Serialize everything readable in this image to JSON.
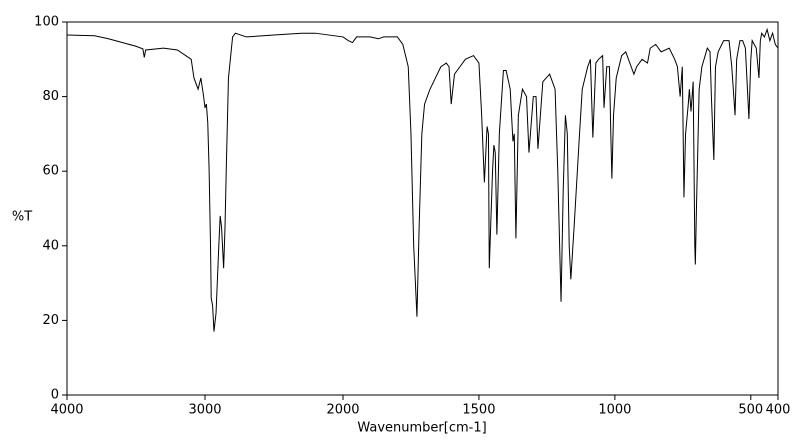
{
  "chart_data": {
    "type": "line",
    "xlabel": "Wavenumber[cm-1]",
    "ylabel": "%T",
    "xlim": [
      4000,
      400
    ],
    "xscale": {
      "type": "piecewise",
      "break": 2000
    },
    "xticks": [
      4000,
      3000,
      2000,
      1500,
      1000,
      500,
      400
    ],
    "ylim": [
      0,
      100
    ],
    "yticks": [
      0,
      20,
      40,
      60,
      80,
      100
    ],
    "color": "#000000",
    "x": [
      4000,
      3800,
      3700,
      3600,
      3500,
      3450,
      3440,
      3430,
      3300,
      3200,
      3100,
      3080,
      3050,
      3030,
      3010,
      3000,
      2990,
      2980,
      2970,
      2960,
      2955,
      2945,
      2935,
      2920,
      2900,
      2890,
      2880,
      2865,
      2855,
      2845,
      2830,
      2800,
      2780,
      2700,
      2500,
      2300,
      2200,
      2100,
      2000,
      1980,
      1965,
      1950,
      1900,
      1870,
      1850,
      1800,
      1780,
      1760,
      1750,
      1740,
      1728,
      1720,
      1710,
      1700,
      1680,
      1660,
      1640,
      1620,
      1610,
      1602,
      1590,
      1570,
      1550,
      1520,
      1500,
      1490,
      1480,
      1470,
      1465,
      1462,
      1450,
      1445,
      1440,
      1434,
      1425,
      1410,
      1400,
      1385,
      1375,
      1370,
      1364,
      1355,
      1340,
      1325,
      1316,
      1300,
      1290,
      1283,
      1265,
      1240,
      1220,
      1210,
      1198,
      1190,
      1182,
      1175,
      1168,
      1162,
      1150,
      1130,
      1120,
      1100,
      1090,
      1081,
      1070,
      1060,
      1045,
      1040,
      1030,
      1020,
      1015,
      1011,
      1005,
      995,
      985,
      975,
      960,
      950,
      940,
      930,
      920,
      900,
      880,
      870,
      850,
      830,
      800,
      780,
      770,
      760,
      752,
      748,
      746,
      740,
      730,
      726,
      720,
      712,
      706,
      704,
      700,
      690,
      680,
      660,
      650,
      645,
      636,
      630,
      620,
      600,
      580,
      570,
      558,
      552,
      540,
      530,
      520,
      507,
      500,
      495,
      480,
      470,
      465,
      460,
      450,
      440,
      430,
      420,
      410,
      400
    ],
    "values": [
      96.5,
      96.3,
      95.5,
      94.5,
      93.5,
      92.8,
      90.5,
      92.5,
      93,
      92.5,
      90,
      85,
      82,
      85,
      80,
      77,
      78,
      73,
      60,
      40,
      26,
      24,
      17,
      22,
      40,
      48,
      45,
      34,
      45,
      62,
      85,
      96,
      97,
      96,
      96.5,
      97,
      97,
      96.5,
      96,
      95,
      94.5,
      96,
      96,
      95.5,
      96,
      96,
      94,
      88,
      70,
      40,
      21,
      45,
      70,
      78,
      82,
      85,
      88,
      89,
      88,
      78,
      86,
      88,
      90,
      91,
      89,
      75,
      57,
      72,
      70,
      34,
      60,
      67,
      65,
      43,
      70,
      87,
      87,
      82,
      68,
      70,
      42,
      75,
      82,
      80,
      65,
      80,
      80,
      66,
      84,
      86,
      82,
      60,
      25,
      55,
      75,
      70,
      40,
      31,
      45,
      70,
      82,
      88,
      90,
      69,
      89,
      90,
      91,
      77,
      88,
      88,
      70,
      58,
      75,
      85,
      88,
      91,
      92,
      90,
      88,
      86,
      88,
      90,
      89,
      93,
      94,
      92,
      93,
      90,
      88,
      80,
      88,
      65,
      53,
      70,
      78,
      82,
      76,
      84,
      40,
      35,
      50,
      82,
      88,
      93,
      92,
      80,
      63,
      88,
      92,
      95,
      95,
      88,
      75,
      90,
      95,
      95,
      93,
      74,
      90,
      95,
      93,
      85,
      95,
      97,
      96,
      98,
      95,
      97,
      94,
      93
    ]
  }
}
